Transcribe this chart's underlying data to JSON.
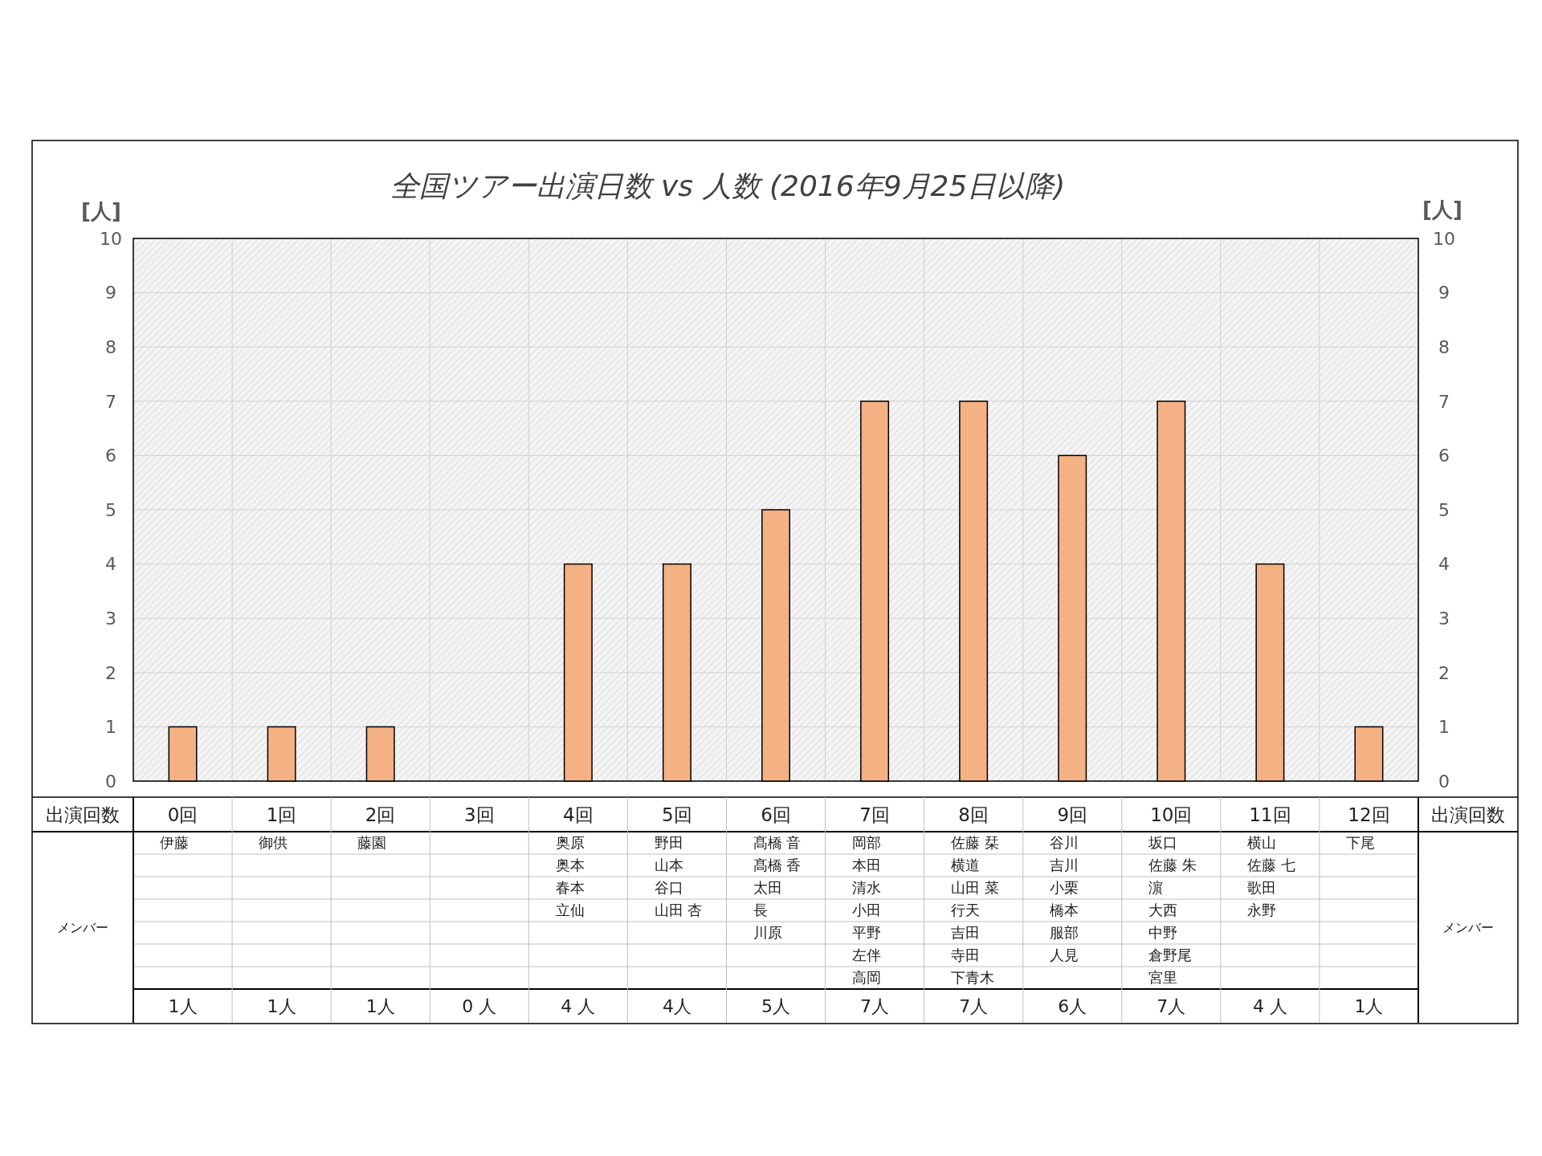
{
  "chart_data": {
    "type": "bar",
    "title": "全国ツアー出演日数 vs 人数 (2016年9月25日以降)",
    "xlabel": "出演回数",
    "ylabel": "[人]",
    "y2label": "[人]",
    "categories": [
      "0回",
      "1回",
      "2回",
      "3回",
      "4回",
      "5回",
      "6回",
      "7回",
      "8回",
      "9回",
      "10回",
      "11回",
      "12回"
    ],
    "values": [
      1,
      1,
      1,
      0,
      4,
      4,
      5,
      7,
      7,
      6,
      7,
      4,
      1
    ],
    "value_labels": [
      "1人",
      "1人",
      "1人",
      "0 人",
      "4 人",
      "4人",
      "5人",
      "7人",
      "7人",
      "6人",
      "7人",
      "4 人",
      "1人"
    ],
    "color": "#f4b183",
    "ylim": [
      0,
      10
    ],
    "yticks": [
      0,
      1,
      2,
      3,
      4,
      5,
      6,
      7,
      8,
      9,
      10
    ],
    "y2lim": [
      0,
      10
    ],
    "y2ticks": [
      0,
      1,
      2,
      3,
      4,
      5,
      6,
      7,
      8,
      9,
      10
    ],
    "grid": true,
    "annotations": [
      "メンバー",
      "伊藤",
      "御供",
      "藤園",
      "奥原",
      "奥本",
      "春本",
      "立仙",
      "野田",
      "山本",
      "谷口",
      "山田 杏",
      "髙橋 音",
      "髙橋 香",
      "太田",
      "長",
      "川原",
      "岡部",
      "本田",
      "清水",
      "小田",
      "平野",
      "左伴",
      "高岡",
      "佐藤 栞",
      "横道",
      "山田 菜",
      "行天",
      "吉田",
      "寺田",
      "下青木",
      "谷川",
      "吉川",
      "小栗",
      "橋本",
      "服部",
      "人見",
      "坂口",
      "佐藤 朱",
      "濵",
      "大西",
      "中野",
      "倉野尾",
      "宮里",
      "横山",
      "佐藤 七",
      "歌田",
      "永野",
      "下尾"
    ]
  }
}
